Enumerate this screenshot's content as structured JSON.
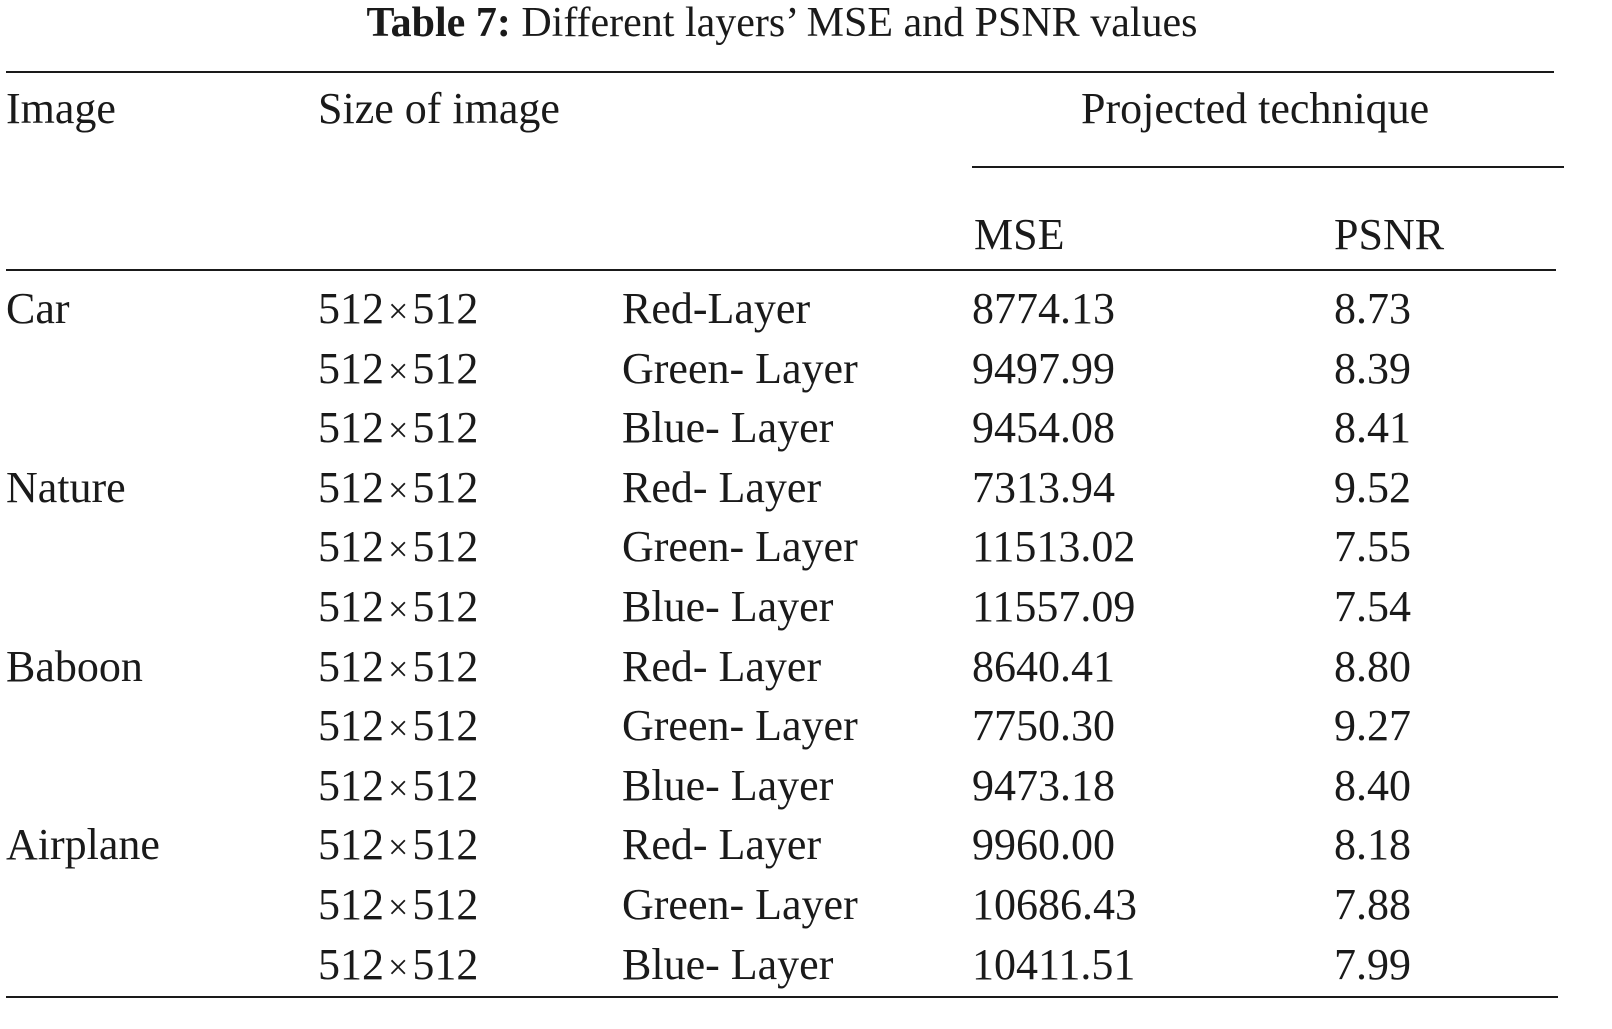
{
  "caption": {
    "label": "Table 7:",
    "text": "Different layers’ MSE and PSNR values"
  },
  "headers": {
    "image": "Image",
    "size": "Size of image",
    "group": "Projected technique",
    "mse": "MSE",
    "psnr": "PSNR"
  },
  "rows": [
    {
      "image": "Car",
      "size_w": "512",
      "times": "×",
      "size_h": "512",
      "layer": "Red-Layer",
      "mse": "8774.13",
      "psnr": "8.73"
    },
    {
      "image": "",
      "size_w": "512",
      "times": "×",
      "size_h": "512",
      "layer": "Green- Layer",
      "mse": "9497.99",
      "psnr": "8.39"
    },
    {
      "image": "",
      "size_w": "512",
      "times": "×",
      "size_h": "512",
      "layer": "Blue- Layer",
      "mse": "9454.08",
      "psnr": "8.41"
    },
    {
      "image": "Nature",
      "size_w": "512",
      "times": "×",
      "size_h": "512",
      "layer": "Red- Layer",
      "mse": "7313.94",
      "psnr": "9.52"
    },
    {
      "image": "",
      "size_w": "512",
      "times": "×",
      "size_h": "512",
      "layer": "Green- Layer",
      "mse": "11513.02",
      "psnr": "7.55"
    },
    {
      "image": "",
      "size_w": "512",
      "times": "×",
      "size_h": "512",
      "layer": "Blue- Layer",
      "mse": "11557.09",
      "psnr": "7.54"
    },
    {
      "image": "Baboon",
      "size_w": "512",
      "times": "×",
      "size_h": "512",
      "layer": "Red- Layer",
      "mse": "8640.41",
      "psnr": "8.80"
    },
    {
      "image": "",
      "size_w": "512",
      "times": "×",
      "size_h": "512",
      "layer": "Green- Layer",
      "mse": "7750.30",
      "psnr": "9.27"
    },
    {
      "image": "",
      "size_w": "512",
      "times": "×",
      "size_h": "512",
      "layer": "Blue- Layer",
      "mse": "9473.18",
      "psnr": "8.40"
    },
    {
      "image": "Airplane",
      "size_w": "512",
      "times": "×",
      "size_h": "512",
      "layer": "Red- Layer",
      "mse": "9960.00",
      "psnr": "8.18"
    },
    {
      "image": "",
      "size_w": "512",
      "times": "×",
      "size_h": "512",
      "layer": "Green- Layer",
      "mse": "10686.43",
      "psnr": "7.88"
    },
    {
      "image": "",
      "size_w": "512",
      "times": "×",
      "size_h": "512",
      "layer": "Blue- Layer",
      "mse": "10411.51",
      "psnr": "7.99"
    }
  ]
}
